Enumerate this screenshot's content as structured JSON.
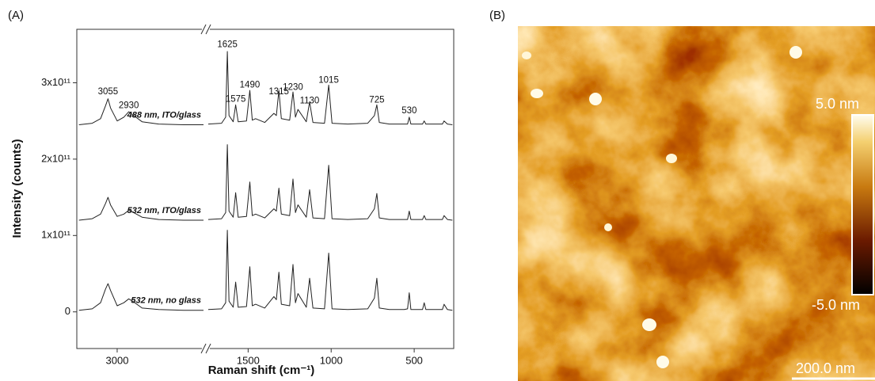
{
  "chart_data": [
    {
      "type": "line",
      "panel_label": "(A)",
      "y_label": "Intensity (counts)",
      "x_label": "Raman shift (cm⁻¹)",
      "x": [
        3230,
        3150,
        3100,
        3070,
        3055,
        3040,
        3000,
        2960,
        2930,
        2900,
        2850,
        2750,
        2600,
        2480,
        2000,
        1740,
        1660,
        1635,
        1625,
        1615,
        1590,
        1575,
        1560,
        1510,
        1490,
        1475,
        1455,
        1400,
        1345,
        1330,
        1315,
        1300,
        1250,
        1230,
        1215,
        1200,
        1150,
        1130,
        1110,
        1040,
        1015,
        995,
        900,
        780,
        740,
        725,
        710,
        650,
        560,
        540,
        530,
        520,
        450,
        440,
        430,
        350,
        330,
        320,
        300,
        270
      ],
      "series": [
        {
          "name": "488 nm, ITO/glass",
          "color": "#222222",
          "values": [
            245000000000.0,
            247000000000.0,
            253000000000.0,
            270000000000.0,
            279000000000.0,
            267000000000.0,
            250000000000.0,
            255000000000.0,
            262000000000.0,
            257000000000.0,
            249000000000.0,
            246000000000.0,
            245000000000.0,
            245000000000.0,
            null,
            246000000000.0,
            247000000000.0,
            255000000000.0,
            341000000000.0,
            257000000000.0,
            249000000000.0,
            271000000000.0,
            249000000000.0,
            250000000000.0,
            290000000000.0,
            251000000000.0,
            253000000000.0,
            248000000000.0,
            260000000000.0,
            257000000000.0,
            290000000000.0,
            253000000000.0,
            251000000000.0,
            288000000000.0,
            255000000000.0,
            265000000000.0,
            249000000000.0,
            275000000000.0,
            248000000000.0,
            247000000000.0,
            297000000000.0,
            247000000000.0,
            246000000000.0,
            247000000000.0,
            257000000000.0,
            271000000000.0,
            248000000000.0,
            246000000000.0,
            246000000000.0,
            246000000000.0,
            255000000000.0,
            246000000000.0,
            246000000000.0,
            250000000000.0,
            246000000000.0,
            246000000000.0,
            246000000000.0,
            250000000000.0,
            246000000000.0,
            245000000000.0
          ]
        },
        {
          "name": "532 nm, ITO/glass",
          "color": "#222222",
          "values": [
            120000000000.0,
            122000000000.0,
            128000000000.0,
            142000000000.0,
            150000000000.0,
            140000000000.0,
            125000000000.0,
            128000000000.0,
            133000000000.0,
            130000000000.0,
            124000000000.0,
            121000000000.0,
            120000000000.0,
            120000000000.0,
            null,
            121000000000.0,
            122000000000.0,
            130000000000.0,
            219000000000.0,
            132000000000.0,
            124000000000.0,
            156000000000.0,
            124000000000.0,
            125000000000.0,
            170000000000.0,
            126000000000.0,
            128000000000.0,
            123000000000.0,
            135000000000.0,
            132000000000.0,
            162000000000.0,
            128000000000.0,
            126000000000.0,
            174000000000.0,
            130000000000.0,
            140000000000.0,
            124000000000.0,
            160000000000.0,
            123000000000.0,
            122000000000.0,
            192000000000.0,
            122000000000.0,
            121000000000.0,
            122000000000.0,
            135000000000.0,
            155000000000.0,
            123000000000.0,
            121000000000.0,
            121000000000.0,
            121000000000.0,
            132000000000.0,
            121000000000.0,
            121000000000.0,
            126000000000.0,
            121000000000.0,
            121000000000.0,
            121000000000.0,
            126000000000.0,
            121000000000.0,
            120000000000.0
          ]
        },
        {
          "name": "532 nm, no glass",
          "color": "#222222",
          "values": [
            2000000000.0,
            4000000000.0,
            12000000000.0,
            30000000000.0,
            37000000000.0,
            28000000000.0,
            8000000000.0,
            12000000000.0,
            17000000000.0,
            13000000000.0,
            5000000000.0,
            3000000000.0,
            2000000000.0,
            2000000000.0,
            null,
            3000000000.0,
            4000000000.0,
            12000000000.0,
            107000000000.0,
            14000000000.0,
            6000000000.0,
            39000000000.0,
            6000000000.0,
            7000000000.0,
            59000000000.0,
            8000000000.0,
            10000000000.0,
            5000000000.0,
            20000000000.0,
            16000000000.0,
            52000000000.0,
            10000000000.0,
            8000000000.0,
            62000000000.0,
            12000000000.0,
            24000000000.0,
            6000000000.0,
            44000000000.0,
            5000000000.0,
            4000000000.0,
            77000000000.0,
            4000000000.0,
            3000000000.0,
            4000000000.0,
            18000000000.0,
            44000000000.0,
            5000000000.0,
            3000000000.0,
            3000000000.0,
            4000000000.0,
            25000000000.0,
            3000000000.0,
            3000000000.0,
            12000000000.0,
            3000000000.0,
            3000000000.0,
            3000000000.0,
            10000000000.0,
            3000000000.0,
            2000000000.0
          ]
        }
      ],
      "xlim": [
        3243,
        262
      ],
      "xbreak": [
        2480,
        1740
      ],
      "xticks": [
        3000,
        1500,
        1000,
        500
      ],
      "ylim": [
        -48000000000.0,
        370000000000.0
      ],
      "yticks": [
        0,
        {
          "value": 100000000000.0,
          "label": "1x10¹¹"
        },
        {
          "value": 200000000000.0,
          "label": "2x10¹¹"
        },
        {
          "value": 300000000000.0,
          "label": "3x10¹¹"
        }
      ],
      "annotations": [
        {
          "label": "3055",
          "x": 3055,
          "y": 288000000000.0
        },
        {
          "label": "2930",
          "x": 2930,
          "y": 270000000000.0
        },
        {
          "label": "1625",
          "x": 1625,
          "y": 350000000000.0
        },
        {
          "label": "1575",
          "x": 1575,
          "y": 278000000000.0
        },
        {
          "label": "1490",
          "x": 1490,
          "y": 297000000000.0
        },
        {
          "label": "1315",
          "x": 1315,
          "y": 288000000000.0
        },
        {
          "label": "1230",
          "x": 1230,
          "y": 294000000000.0
        },
        {
          "label": "1130",
          "x": 1130,
          "y": 276000000000.0
        },
        {
          "label": "1015",
          "x": 1015,
          "y": 303000000000.0
        },
        {
          "label": "725",
          "x": 725,
          "y": 277000000000.0
        },
        {
          "label": "530",
          "x": 530,
          "y": 263000000000.0
        }
      ]
    },
    {
      "type": "image",
      "panel_label": "(B)",
      "colorbar": {
        "max_label": "5.0 nm",
        "min_label": "-5.0 nm"
      },
      "scale_bar": "200.0 nm"
    }
  ]
}
